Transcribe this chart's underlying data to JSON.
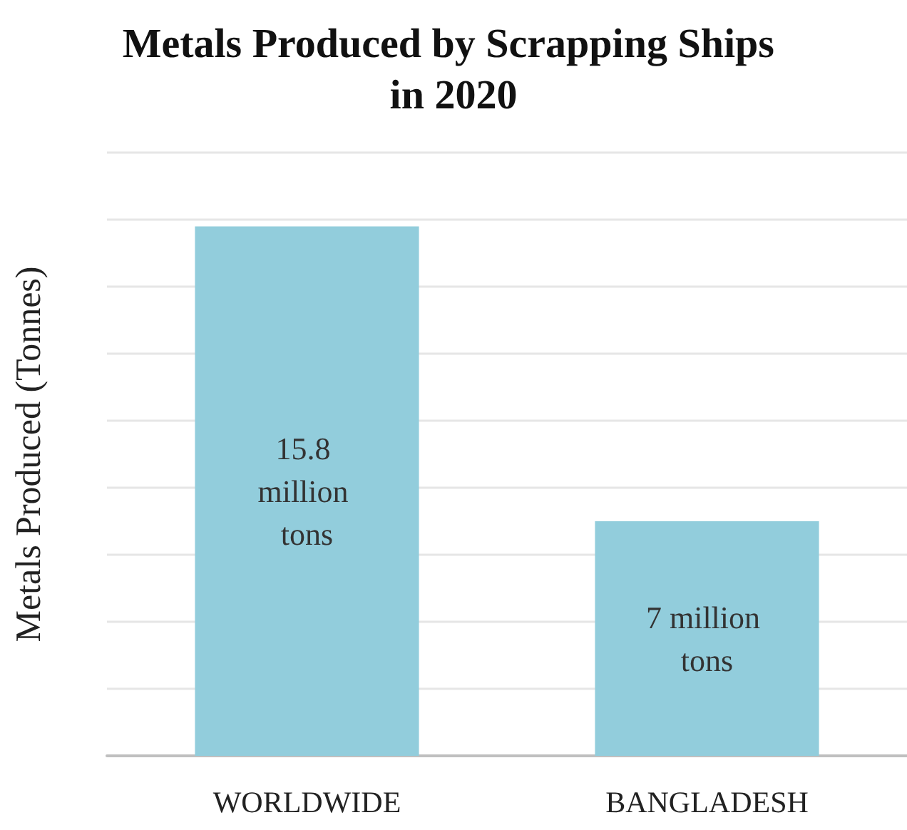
{
  "chart_data": {
    "type": "bar",
    "title": "Metals Produced by Scrapping Ships in 2020",
    "ylabel": "Metals Produced (Tonnes)",
    "categories": [
      "WORLDWIDE",
      "BANGLADESH"
    ],
    "values": [
      15.8,
      7
    ],
    "value_labels": [
      "15.8 million tons",
      "7 million tons"
    ],
    "color": "#92cddc",
    "ylim": [
      0,
      18
    ],
    "yticks": [
      {
        "value": 0,
        "label": null
      },
      {
        "value": 2,
        "label": null
      },
      {
        "value": 4,
        "label": null
      },
      {
        "value": 6,
        "label": null
      },
      {
        "value": 8,
        "label": null
      },
      {
        "value": 10,
        "label": null
      },
      {
        "value": 12,
        "label": null
      },
      {
        "value": 14,
        "label": null
      },
      {
        "value": 16,
        "label": null
      },
      {
        "value": 18,
        "label": null
      }
    ],
    "grid": "y",
    "tick_labels": "x"
  }
}
